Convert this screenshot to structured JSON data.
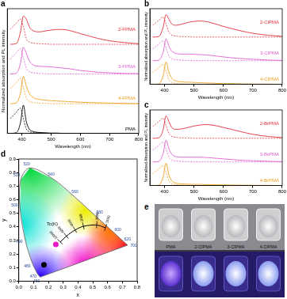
{
  "chart_data": [
    {
      "type": "line",
      "title": "a",
      "x_label": "Wavelength (nm)",
      "y_label": "Normalized absorption and PL intensity",
      "x": [
        360,
        380,
        395,
        405,
        415,
        425,
        440,
        460,
        480,
        500,
        520,
        540,
        560,
        580,
        600,
        630,
        660,
        700,
        750,
        800
      ],
      "xlim": [
        350,
        800
      ],
      "xticks": [
        400,
        500,
        600,
        700,
        800
      ],
      "ylim": [
        0,
        4.2
      ],
      "grid": false,
      "tick_labels": "x",
      "series": [
        {
          "name": "2-FPMA",
          "color": "#e0303a",
          "values": [
            3,
            3.02,
            3.4,
            3.95,
            3.85,
            3.6,
            3.45,
            3.42,
            3.45,
            3.48,
            3.5,
            3.5,
            3.47,
            3.42,
            3.36,
            3.28,
            3.2,
            3.12,
            3.06,
            3.02
          ],
          "absorption": [
            3.5,
            3.7,
            3.85,
            3.6,
            3.2,
            3.08,
            3.04,
            3.02,
            3.01,
            3,
            3,
            3,
            3,
            3,
            3,
            3,
            3,
            3,
            3,
            3
          ]
        },
        {
          "name": "3-FPMA",
          "color": "#e060d0",
          "values": [
            2,
            2.02,
            2.35,
            2.9,
            2.7,
            2.45,
            2.3,
            2.26,
            2.25,
            2.24,
            2.22,
            2.2,
            2.18,
            2.15,
            2.12,
            2.09,
            2.06,
            2.04,
            2.02,
            2.01
          ],
          "absorption": [
            2.5,
            2.7,
            2.85,
            2.55,
            2.2,
            2.08,
            2.04,
            2.02,
            2.01,
            2,
            2,
            2,
            2,
            2,
            2,
            2,
            2,
            2,
            2,
            2
          ]
        },
        {
          "name": "4-FPMA",
          "color": "#f0a020",
          "values": [
            1,
            1.02,
            1.35,
            1.92,
            1.6,
            1.35,
            1.2,
            1.14,
            1.12,
            1.1,
            1.09,
            1.08,
            1.07,
            1.06,
            1.05,
            1.04,
            1.03,
            1.02,
            1.01,
            1
          ],
          "absorption": [
            1.5,
            1.7,
            1.85,
            1.55,
            1.2,
            1.08,
            1.04,
            1.02,
            1.01,
            1,
            1,
            1,
            1,
            1,
            1,
            1,
            1,
            1,
            1,
            1
          ]
        },
        {
          "name": "PMA",
          "color": "#000000",
          "values": [
            0,
            0.02,
            0.35,
            0.95,
            0.4,
            0.15,
            0.06,
            0.03,
            0.02,
            0.01,
            0.01,
            0,
            0,
            0,
            0,
            0,
            0,
            0,
            0,
            0
          ],
          "absorption": [
            0.5,
            0.7,
            0.85,
            0.5,
            0.15,
            0.06,
            0.03,
            0.02,
            0.01,
            0,
            0,
            0,
            0,
            0,
            0,
            0,
            0,
            0,
            0,
            0
          ]
        }
      ]
    },
    {
      "type": "line",
      "title": "b",
      "x_label": "Wavelength (nm)",
      "y_label": "Normalized absorption and PL intensity",
      "x": [
        360,
        380,
        395,
        405,
        415,
        425,
        440,
        460,
        480,
        500,
        520,
        540,
        560,
        580,
        600,
        630,
        660,
        700,
        750,
        800
      ],
      "xlim": [
        350,
        800
      ],
      "xticks": [
        400,
        500,
        600,
        700,
        800
      ],
      "ylim": [
        0,
        3.2
      ],
      "grid": false,
      "tick_labels": "x",
      "series": [
        {
          "name": "2-ClPMA",
          "color": "#e0303a",
          "values": [
            2,
            2.02,
            2.4,
            2.95,
            2.75,
            2.55,
            2.5,
            2.55,
            2.62,
            2.66,
            2.68,
            2.66,
            2.6,
            2.53,
            2.45,
            2.35,
            2.26,
            2.16,
            2.08,
            2.03
          ],
          "absorption": [
            2.5,
            2.7,
            2.85,
            2.55,
            2.2,
            2.08,
            2.04,
            2.02,
            2.01,
            2,
            2,
            2,
            2,
            2,
            2,
            2,
            2,
            2,
            2,
            2
          ]
        },
        {
          "name": "3-ClPMA",
          "color": "#e060d0",
          "values": [
            1,
            1.02,
            1.35,
            1.92,
            1.6,
            1.4,
            1.3,
            1.28,
            1.28,
            1.27,
            1.26,
            1.24,
            1.22,
            1.19,
            1.16,
            1.12,
            1.09,
            1.06,
            1.03,
            1.01
          ],
          "absorption": [
            1.5,
            1.7,
            1.85,
            1.55,
            1.2,
            1.08,
            1.04,
            1.02,
            1.01,
            1,
            1,
            1,
            1,
            1,
            1,
            1,
            1,
            1,
            1,
            1
          ]
        },
        {
          "name": "4-ClPMA",
          "color": "#f0a020",
          "values": [
            0,
            0.02,
            0.35,
            0.95,
            0.5,
            0.25,
            0.14,
            0.1,
            0.09,
            0.08,
            0.07,
            0.06,
            0.05,
            0.04,
            0.03,
            0.03,
            0.02,
            0.01,
            0.01,
            0
          ],
          "absorption": [
            0.5,
            0.7,
            0.85,
            0.55,
            0.2,
            0.08,
            0.04,
            0.02,
            0.01,
            0,
            0,
            0,
            0,
            0,
            0,
            0,
            0,
            0,
            0,
            0
          ]
        }
      ]
    },
    {
      "type": "line",
      "title": "c",
      "x_label": "Wavelength (nm)",
      "y_label": "Normalized Absorption and PL intensity",
      "x": [
        360,
        380,
        395,
        405,
        415,
        425,
        440,
        460,
        480,
        500,
        520,
        540,
        560,
        580,
        600,
        630,
        660,
        700,
        750,
        800
      ],
      "xlim": [
        350,
        800
      ],
      "xticks": [
        400,
        500,
        600,
        700,
        800
      ],
      "ylim": [
        0,
        3.2
      ],
      "grid": false,
      "tick_labels": "x",
      "series": [
        {
          "name": "2-BrPMA",
          "color": "#e0303a",
          "values": [
            2,
            2.02,
            2.35,
            2.95,
            2.7,
            2.45,
            2.38,
            2.4,
            2.46,
            2.52,
            2.56,
            2.58,
            2.56,
            2.52,
            2.46,
            2.37,
            2.28,
            2.17,
            2.08,
            2.03
          ],
          "absorption": [
            2.5,
            2.7,
            2.85,
            2.55,
            2.2,
            2.08,
            2.04,
            2.02,
            2.01,
            2,
            2,
            2,
            2,
            2,
            2,
            2,
            2,
            2,
            2,
            2
          ]
        },
        {
          "name": "3-BrPMA",
          "color": "#e060d0",
          "values": [
            1,
            1.02,
            1.35,
            1.92,
            1.55,
            1.32,
            1.22,
            1.2,
            1.2,
            1.2,
            1.2,
            1.19,
            1.17,
            1.15,
            1.13,
            1.1,
            1.07,
            1.05,
            1.03,
            1.01
          ],
          "absorption": [
            1.5,
            1.7,
            1.85,
            1.55,
            1.2,
            1.08,
            1.04,
            1.02,
            1.01,
            1,
            1,
            1,
            1,
            1,
            1,
            1,
            1,
            1,
            1,
            1
          ]
        },
        {
          "name": "4-BrPMA",
          "color": "#f0a020",
          "values": [
            0,
            0.02,
            0.35,
            0.95,
            0.45,
            0.2,
            0.1,
            0.07,
            0.06,
            0.05,
            0.05,
            0.04,
            0.04,
            0.03,
            0.03,
            0.02,
            0.02,
            0.01,
            0.01,
            0
          ],
          "absorption": [
            0.5,
            0.7,
            0.85,
            0.55,
            0.2,
            0.08,
            0.04,
            0.02,
            0.01,
            0,
            0,
            0,
            0,
            0,
            0,
            0,
            0,
            0,
            0,
            0
          ]
        }
      ]
    },
    {
      "type": "scatter",
      "title": "d",
      "x_label": "x",
      "y_label": "y",
      "xlim": [
        0,
        0.8
      ],
      "xticks": [
        {
          "value": 0,
          "label": "0.0"
        },
        0.1,
        0.2,
        0.3,
        0.4,
        0.5,
        0.6,
        0.7,
        0.8
      ],
      "ylim": [
        0,
        0.9
      ],
      "yticks": [
        {
          "value": 0,
          "label": "0.0"
        },
        0.1,
        0.2,
        0.3,
        0.4,
        0.5,
        0.6,
        0.7,
        0.8,
        0.9
      ],
      "grid": false,
      "spectral_locus": {
        "wavelengths": [
          460,
          470,
          480,
          490,
          500,
          510,
          520,
          540,
          560,
          580,
          600,
          620,
          700
        ],
        "x": [
          0.144,
          0.1241,
          0.0913,
          0.0454,
          0.0082,
          0.0139,
          0.0743,
          0.2296,
          0.3731,
          0.5125,
          0.627,
          0.6915,
          0.7347
        ],
        "y": [
          0.0297,
          0.0578,
          0.1327,
          0.295,
          0.5384,
          0.7502,
          0.8338,
          0.7543,
          0.6245,
          0.4866,
          0.3725,
          0.3083,
          0.2653
        ]
      },
      "planckian_locus": {
        "label": "Tc(K)",
        "temperatures": [
          10000,
          6000,
          4000,
          3000,
          2000,
          1500
        ],
        "x": [
          0.2807,
          0.3221,
          0.3805,
          0.4369,
          0.5267,
          0.5857
        ],
        "y": [
          0.2884,
          0.3318,
          0.3768,
          0.4041,
          0.4133,
          0.3931
        ]
      },
      "points": {
        "x": [
          0.25,
          0.17
        ],
        "y": [
          0.27,
          0.12
        ],
        "colors": [
          "#e81cc8",
          "#000000"
        ]
      }
    }
  ],
  "photo": {
    "title": "e",
    "labels": [
      "PMA",
      "2-ClPMA",
      "3-ClPMA",
      "4-ClPMA"
    ]
  }
}
